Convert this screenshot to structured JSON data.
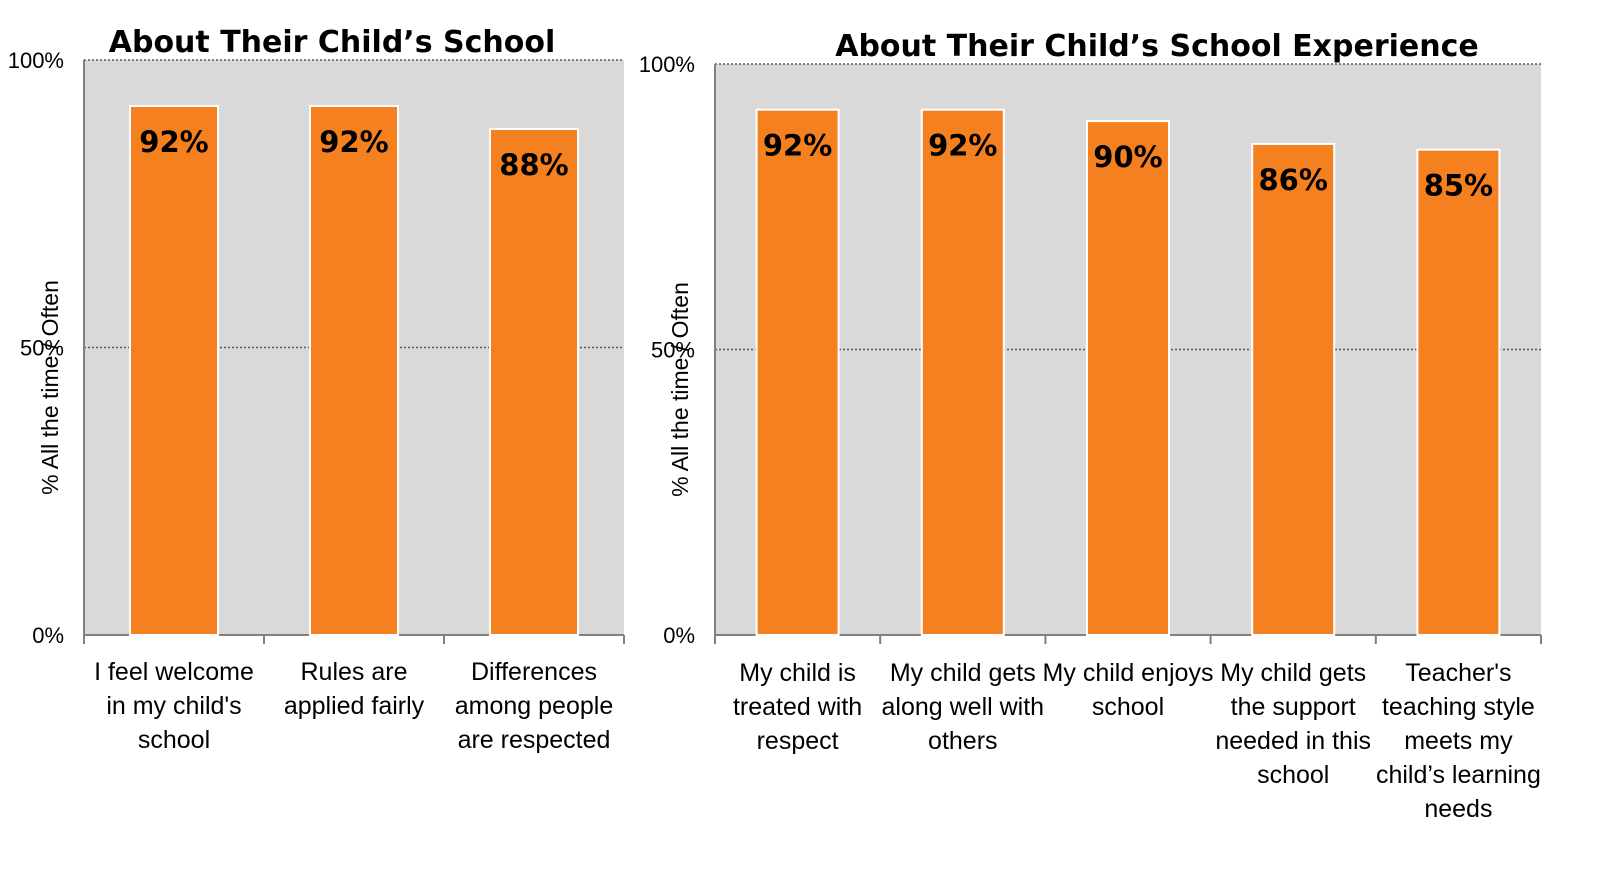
{
  "colors": {
    "bar": "#F5801F",
    "plot_background": "#D9D9D9",
    "gridline": "#595959",
    "axis": "#808080"
  },
  "chart_data": [
    {
      "type": "bar",
      "title": "About Their Child’s School",
      "ylabel": "% All the time / Often",
      "ylim": [
        0,
        100
      ],
      "yticks": [
        "0%",
        "50%",
        "100%"
      ],
      "grid": "dotted at 50% and 100%",
      "categories": [
        [
          "I feel welcome",
          "in my child's",
          "school"
        ],
        [
          "Rules are",
          "applied fairly"
        ],
        [
          "Differences",
          "among people",
          "are respected"
        ]
      ],
      "values": [
        92,
        92,
        88
      ],
      "data_labels": [
        "92%",
        "92%",
        "88%"
      ]
    },
    {
      "type": "bar",
      "title": "About Their Child’s School Experience",
      "ylabel": "% All the time / Often",
      "ylim": [
        0,
        100
      ],
      "yticks": [
        "0%",
        "50%",
        "100%"
      ],
      "grid": "dotted at 50% and 100%",
      "categories": [
        [
          "My child is",
          "treated with",
          "respect"
        ],
        [
          "My child gets",
          "along well with",
          "others"
        ],
        [
          "My child enjoys",
          "school"
        ],
        [
          "My child gets",
          "the support",
          "needed in this",
          "school"
        ],
        [
          "Teacher's",
          "teaching style",
          "meets my",
          "child’s learning",
          "needs"
        ]
      ],
      "values": [
        92,
        92,
        90,
        86,
        85
      ],
      "data_labels": [
        "92%",
        "92%",
        "90%",
        "86%",
        "85%"
      ]
    }
  ]
}
